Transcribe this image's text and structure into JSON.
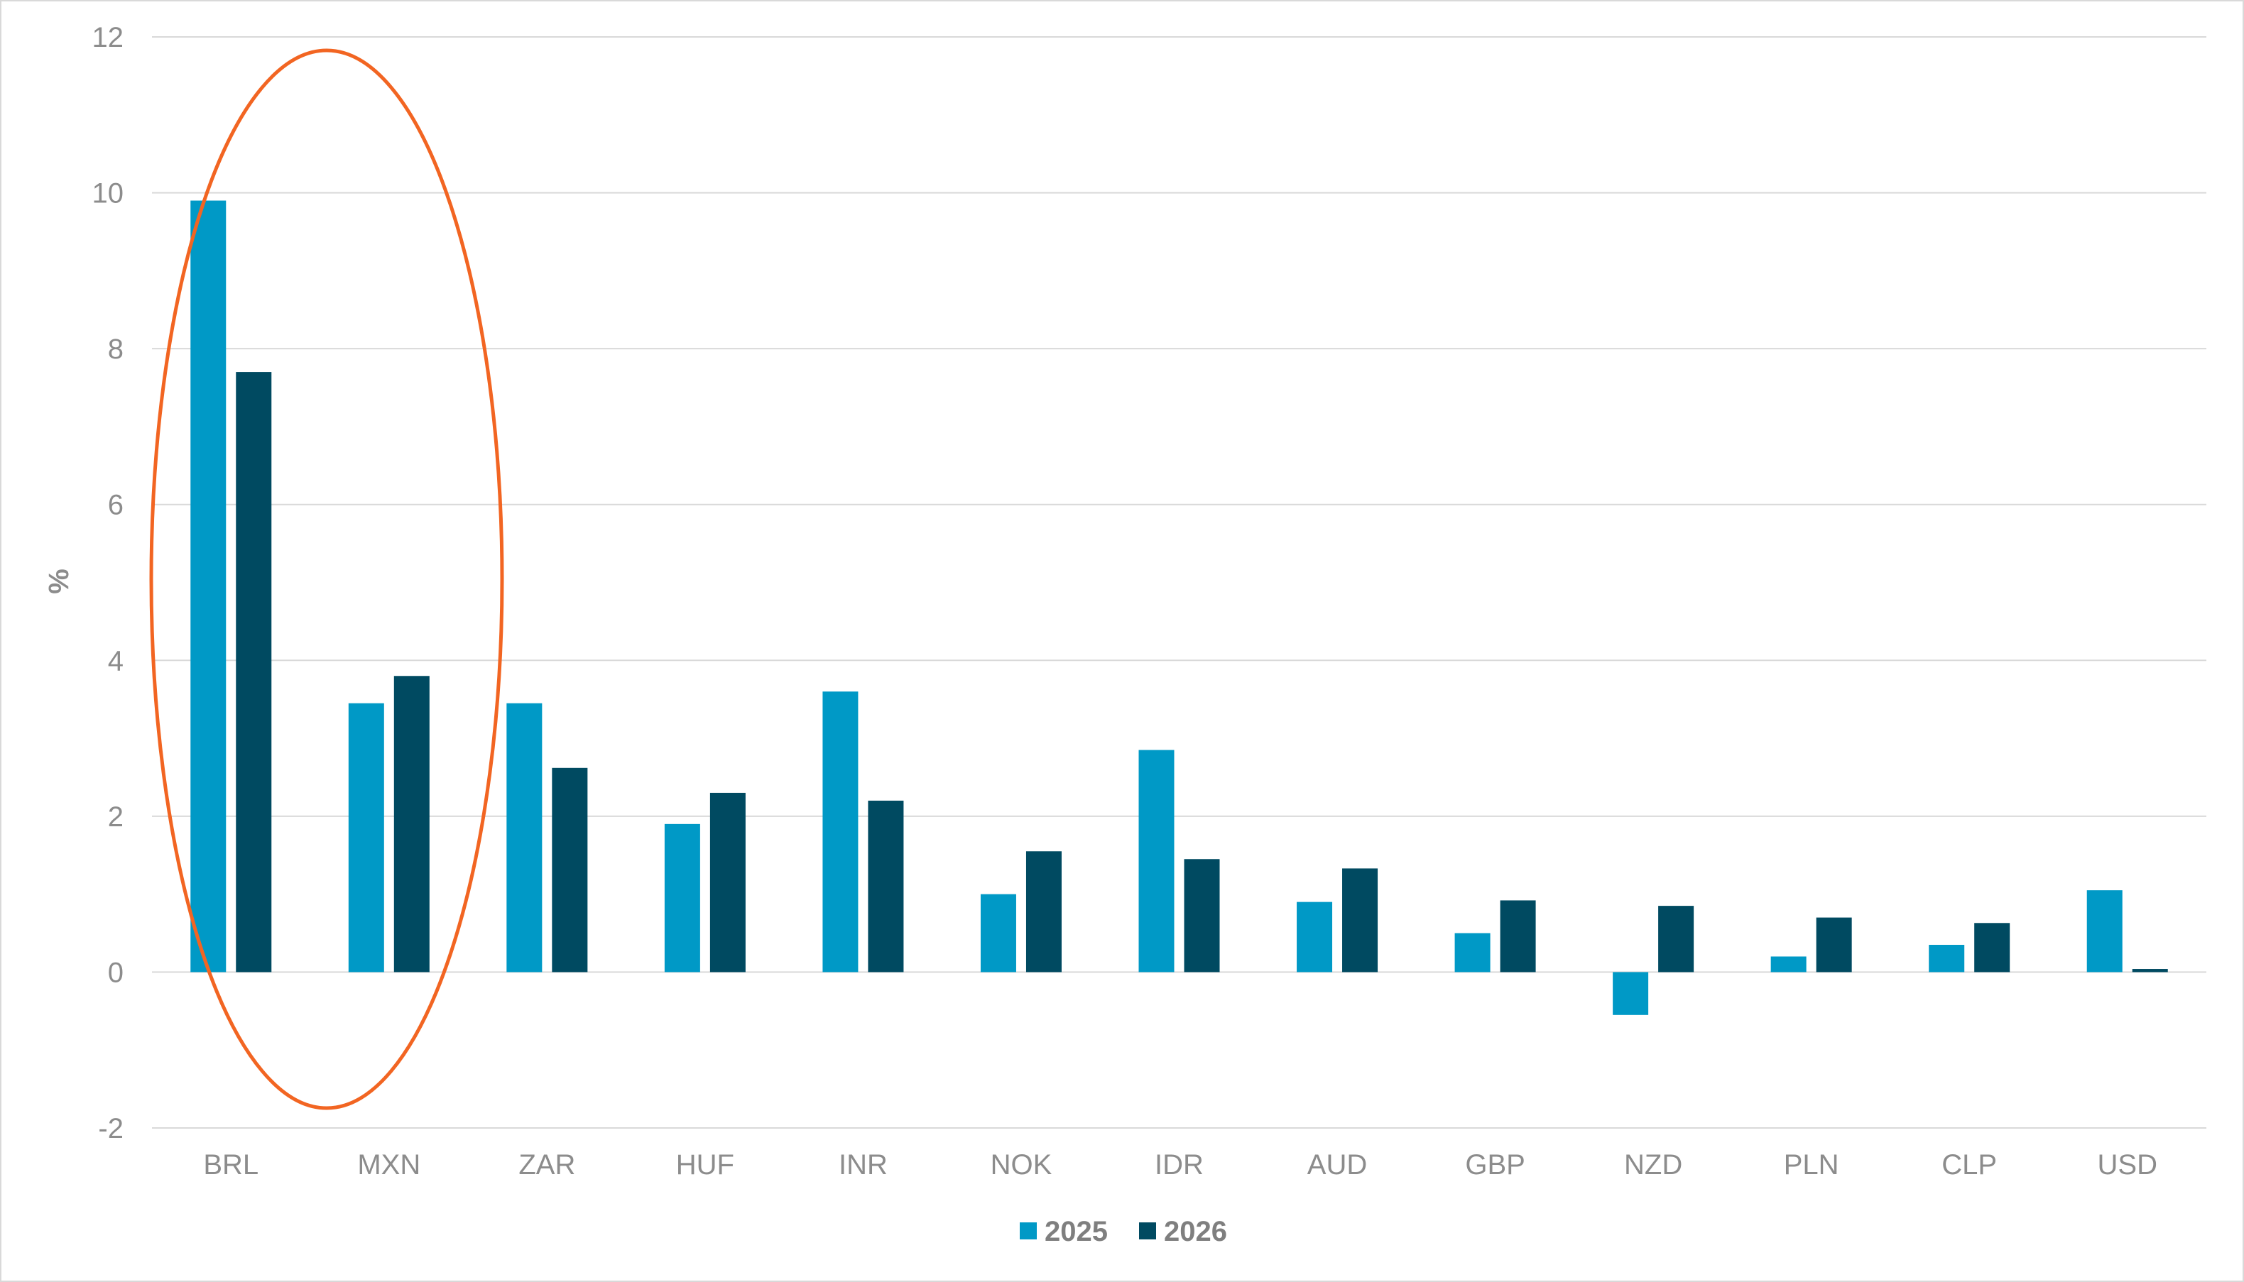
{
  "chart_data": {
    "type": "bar",
    "title": "",
    "xlabel": "",
    "ylabel": "%",
    "ylim": [
      -2,
      12
    ],
    "yticks": [
      -2,
      0,
      2,
      4,
      6,
      8,
      10,
      12
    ],
    "grid": true,
    "legend_position": "bottom-center",
    "categories": [
      "BRL",
      "MXN",
      "ZAR",
      "HUF",
      "INR",
      "NOK",
      "IDR",
      "AUD",
      "GBP",
      "NZD",
      "PLN",
      "CLP",
      "USD"
    ],
    "series": [
      {
        "name": "2025",
        "color": "#0099c6",
        "values": [
          9.9,
          3.45,
          3.45,
          1.9,
          3.6,
          1.0,
          2.85,
          0.9,
          0.5,
          -0.55,
          0.2,
          0.35,
          1.05
        ]
      },
      {
        "name": "2026",
        "color": "#004a61",
        "values": [
          7.7,
          3.8,
          2.62,
          2.3,
          2.2,
          1.55,
          1.45,
          1.33,
          0.92,
          0.85,
          0.7,
          0.63,
          0.04
        ]
      }
    ],
    "annotation": {
      "shape": "ellipse",
      "color": "#f26522",
      "highlights": [
        "BRL",
        "MXN"
      ]
    }
  }
}
